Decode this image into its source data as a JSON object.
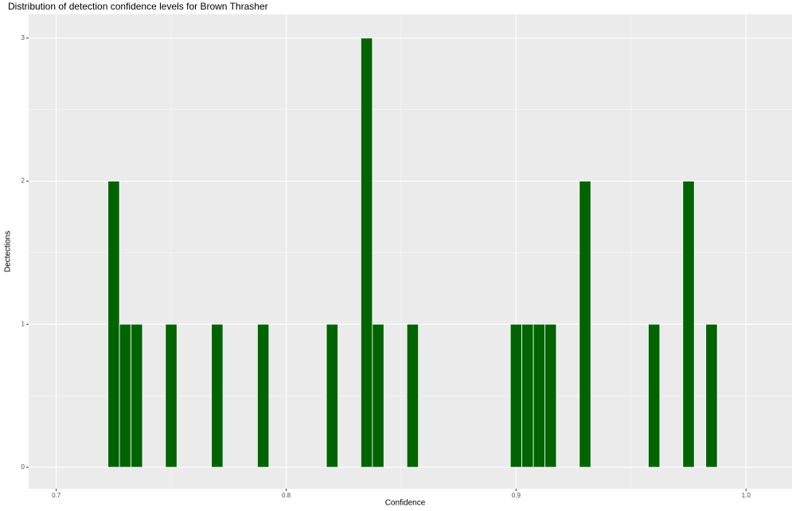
{
  "chart_data": {
    "type": "histogram",
    "title": "Distribution of detection confidence levels for Brown Thrasher",
    "x_label": "Confidence",
    "y_label": "Dectections",
    "bins": [
      0.7225,
      0.7275,
      0.7325,
      0.7375,
      0.7425,
      0.7475,
      0.7525,
      0.7575,
      0.7625,
      0.7675,
      0.7725,
      0.7775,
      0.7825,
      0.7875,
      0.7925,
      0.7975,
      0.8025,
      0.8075,
      0.8125,
      0.8175,
      0.8225,
      0.8275,
      0.8325,
      0.8375,
      0.8425,
      0.8475,
      0.8525,
      0.8575,
      0.8625,
      0.8675,
      0.8725,
      0.8775,
      0.8825,
      0.8875,
      0.8925,
      0.8975,
      0.9025,
      0.9075,
      0.9125,
      0.9175,
      0.9225,
      0.9275,
      0.9325,
      0.9375,
      0.9425,
      0.9475,
      0.9525,
      0.9575,
      0.9625,
      0.9675,
      0.9725,
      0.9775,
      0.9825,
      0.9875
    ],
    "values": [
      2,
      1,
      1,
      0,
      0,
      1,
      0,
      0,
      0,
      1,
      0,
      0,
      0,
      1,
      0,
      0,
      0,
      0,
      0,
      1,
      0,
      0,
      3,
      1,
      0,
      0,
      1,
      0,
      0,
      0,
      0,
      0,
      0,
      0,
      0,
      1,
      1,
      1,
      1,
      0,
      0,
      2,
      0,
      0,
      0,
      0,
      0,
      1,
      0,
      0,
      2,
      0,
      1
    ],
    "color": "#006400",
    "xlim": [
      0.688,
      1.02
    ],
    "xticks": [
      0.7,
      0.8,
      0.9,
      {
        "value": 1,
        "label": "1.0"
      }
    ],
    "ylim": [
      -0.15,
      3.166
    ],
    "yticks": [
      0,
      1,
      2,
      3
    ],
    "grid": true
  }
}
